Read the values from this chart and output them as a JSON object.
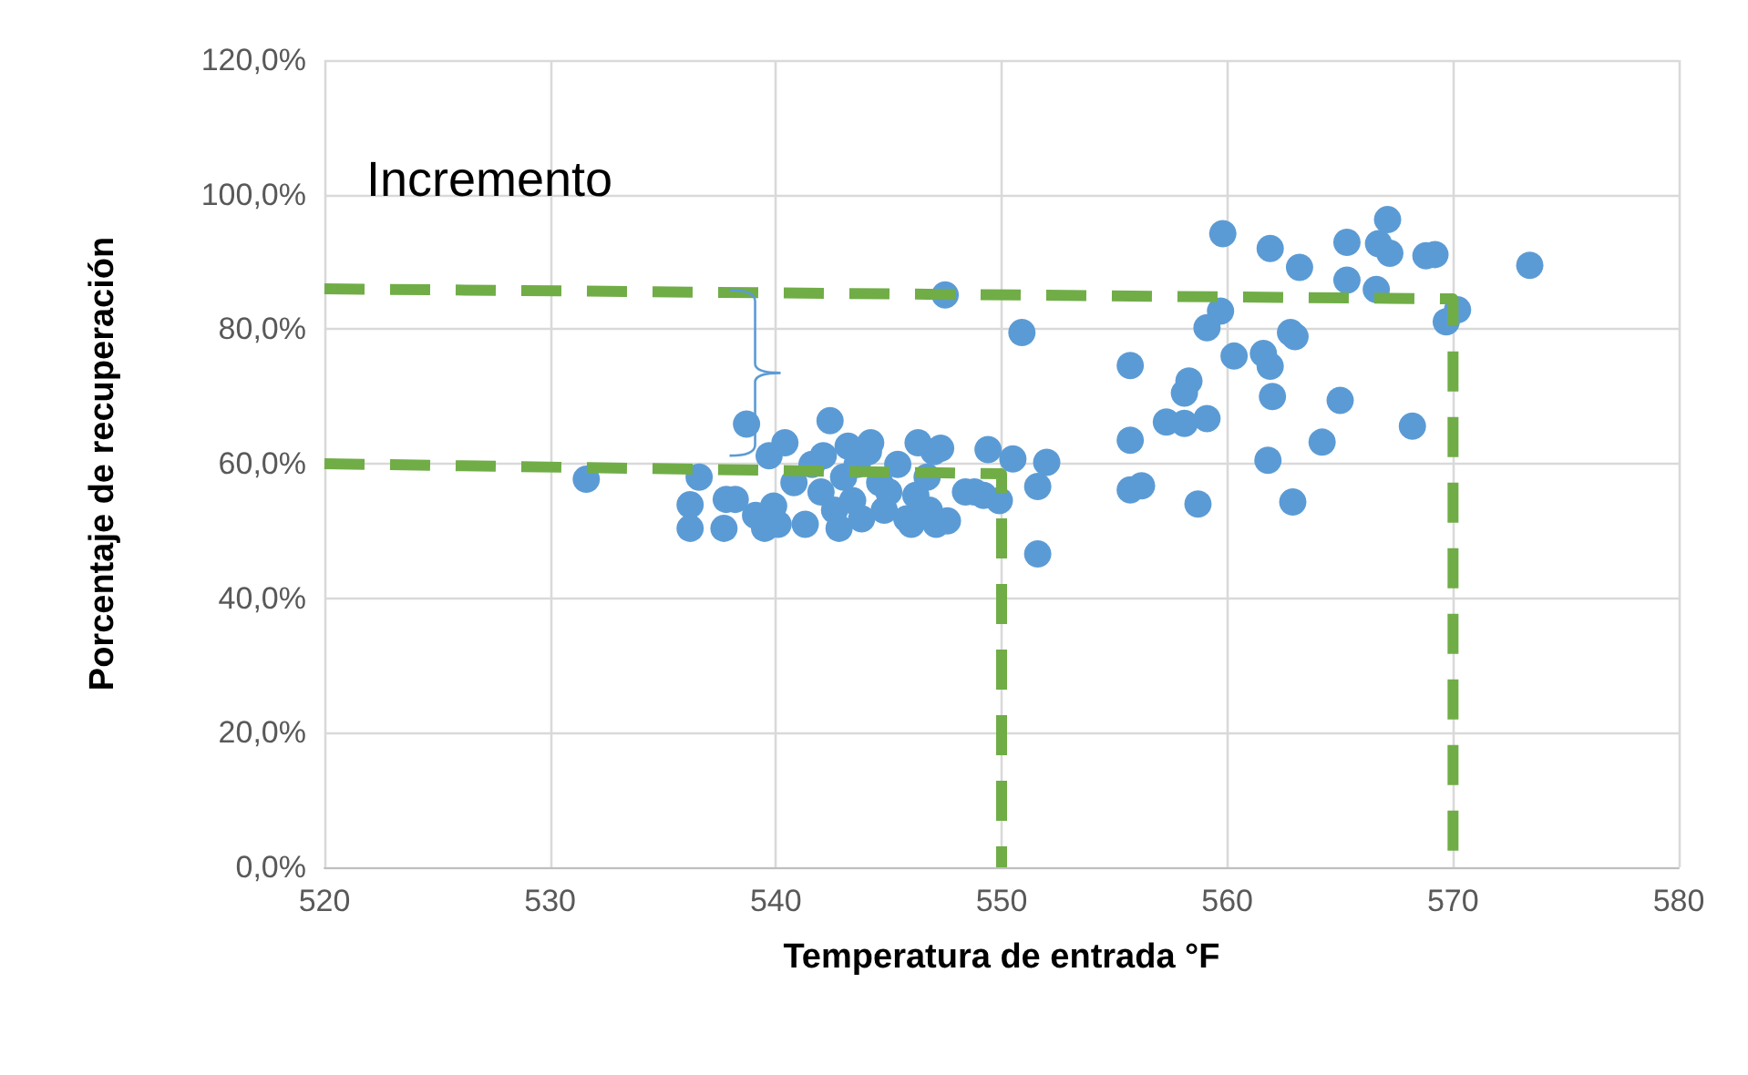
{
  "chart_data": {
    "type": "scatter",
    "xlabel": "Temperatura de entrada °F",
    "ylabel": "Porcentaje de recuperación",
    "annotations": [
      "Incremento"
    ],
    "xlim": [
      520,
      580
    ],
    "xticks": [
      520,
      530,
      540,
      550,
      560,
      570,
      580
    ],
    "ylim": [
      0,
      120
    ],
    "yticks": [
      {
        "value": 0,
        "label": "0,0%"
      },
      {
        "value": 20,
        "label": "20,0%"
      },
      {
        "value": 40,
        "label": "40,0%"
      },
      {
        "value": 60,
        "label": "60,0%"
      },
      {
        "value": 80,
        "label": "80,0%"
      },
      {
        "value": 100,
        "label": "100,0%"
      },
      {
        "value": 120,
        "label": "120,0%"
      }
    ],
    "grid": true,
    "marker": "circle",
    "series": [
      {
        "color": "#5b9bd5",
        "x": [
          531.6,
          536.2,
          536.2,
          536.6,
          537.8,
          537.7,
          538.2,
          538.7,
          539.1,
          539.5,
          539.7,
          539.9,
          540.1,
          540.4,
          540.8,
          541.3,
          541.6,
          542,
          542.4,
          542.1,
          542.6,
          542.8,
          543,
          543.2,
          543.4,
          543.6,
          543.8,
          544.1,
          544.2,
          544.6,
          544.8,
          545,
          545.4,
          545.8,
          546,
          546.2,
          546.3,
          546.7,
          546.8,
          547,
          547.1,
          547.3,
          547.5,
          547.6,
          548.4,
          548.8,
          549.2,
          549.4,
          549.9,
          550.5,
          550.9,
          551.6,
          551.6,
          552,
          555.7,
          559.8,
          561.9,
          563.2,
          565.3,
          567.1,
          566.7,
          567.2,
          568.8,
          569.2,
          573.4,
          565.3,
          566.6,
          570.2,
          569.7,
          559.7,
          559.1,
          562.8,
          563,
          560.3,
          561.6,
          561.9,
          555.7,
          558.3,
          558.1,
          562,
          565,
          557.3,
          558.1,
          559.1,
          568.2,
          555.7,
          564.2,
          561.8,
          556.2,
          558.7,
          562.9
        ],
        "values": [
          57.7,
          53.9,
          50.4,
          58,
          54.7,
          50.4,
          54.7,
          65.9,
          52.3,
          50.4,
          61.2,
          53.7,
          51,
          63.1,
          57.2,
          51,
          59.9,
          55.8,
          66.4,
          61.2,
          53.1,
          50.4,
          58,
          62.6,
          54.5,
          59.9,
          51.8,
          61.8,
          63.1,
          57.2,
          53.1,
          55.8,
          59.9,
          51.8,
          51,
          55.3,
          63.1,
          58,
          53.1,
          61.8,
          51,
          62.3,
          85.1,
          51.5,
          55.8,
          55.8,
          55.3,
          62.1,
          54.5,
          60.7,
          79.5,
          56.6,
          46.6,
          60.2,
          56.1,
          94.2,
          92,
          89.2,
          92.9,
          96.3,
          92.7,
          91.3,
          90.9,
          91.1,
          89.5,
          87.3,
          85.9,
          82.9,
          81.1,
          82.7,
          80.2,
          79.5,
          78.9,
          76,
          76.4,
          74.5,
          74.6,
          72.3,
          70.5,
          70,
          69.4,
          66.2,
          66,
          66.7,
          65.6,
          63.5,
          63.2,
          60.5,
          56.7,
          54,
          54.3
        ]
      },
      {
        "type": "line",
        "color": "#70ad47",
        "line_style": "dashed",
        "marker": "none",
        "x": [
          520,
          550,
          550
        ],
        "values": [
          60,
          58.5,
          0
        ]
      },
      {
        "type": "line",
        "color": "#70ad47",
        "line_style": "dashed",
        "marker": "none",
        "x": [
          520,
          570,
          570
        ],
        "values": [
          86,
          84.5,
          0
        ]
      }
    ]
  }
}
